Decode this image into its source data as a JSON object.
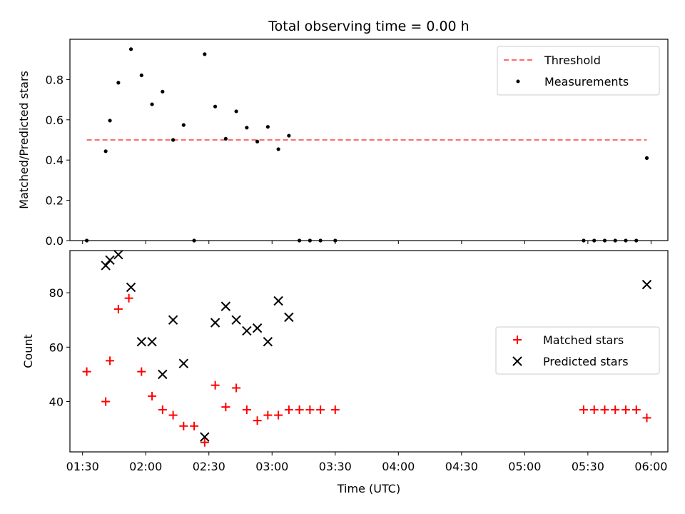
{
  "chart_data": [
    {
      "type": "scatter",
      "title": "Total observing time = 0.00 h",
      "xlabel": "",
      "ylabel": "Matched/Predicted stars",
      "xlim": [
        "01:24",
        "06:08"
      ],
      "ylim": [
        0,
        1.0
      ],
      "yticks": [
        "0.0",
        "0.2",
        "0.4",
        "0.6",
        "0.8"
      ],
      "legend_position": "top-right",
      "legend": [
        "Threshold",
        "Measurements"
      ],
      "threshold": {
        "name": "Threshold",
        "value": 0.5,
        "x_start": "01:32",
        "x_end": "05:58",
        "color": "#ff6b6b"
      },
      "series": [
        {
          "name": "Measurements",
          "color": "#000000",
          "points": [
            [
              "01:32",
              0.0
            ],
            [
              "01:41",
              0.444
            ],
            [
              "01:43",
              0.596
            ],
            [
              "01:47",
              0.784
            ],
            [
              "01:53",
              0.951
            ],
            [
              "01:58",
              0.821
            ],
            [
              "02:03",
              0.677
            ],
            [
              "02:08",
              0.74
            ],
            [
              "02:13",
              0.5
            ],
            [
              "02:18",
              0.574
            ],
            [
              "02:23",
              0.0
            ],
            [
              "02:28",
              0.926
            ],
            [
              "02:33",
              0.666
            ],
            [
              "02:38",
              0.506
            ],
            [
              "02:43",
              0.642
            ],
            [
              "02:48",
              0.561
            ],
            [
              "02:53",
              0.492
            ],
            [
              "02:58",
              0.565
            ],
            [
              "03:03",
              0.454
            ],
            [
              "03:08",
              0.521
            ],
            [
              "03:13",
              0.0
            ],
            [
              "03:18",
              0.0
            ],
            [
              "03:23",
              0.0
            ],
            [
              "03:30",
              0.0
            ],
            [
              "05:28",
              0.0
            ],
            [
              "05:33",
              0.0
            ],
            [
              "05:38",
              0.0
            ],
            [
              "05:43",
              0.0
            ],
            [
              "05:48",
              0.0
            ],
            [
              "05:53",
              0.0
            ],
            [
              "05:58",
              0.41
            ]
          ]
        }
      ]
    },
    {
      "type": "scatter",
      "title": "",
      "xlabel": "Time (UTC)",
      "ylabel": "Count",
      "xlim": [
        "01:24",
        "06:08"
      ],
      "ylim": [
        21.5,
        95.5
      ],
      "yticks": [
        "40",
        "60",
        "80"
      ],
      "xticks": [
        "01:30",
        "02:00",
        "02:30",
        "03:00",
        "03:30",
        "04:00",
        "04:30",
        "05:00",
        "05:30",
        "06:00"
      ],
      "legend_position": "center-right",
      "legend": [
        "Matched stars",
        "Predicted stars"
      ],
      "series": [
        {
          "name": "Matched stars",
          "marker": "+",
          "color": "#ff0000",
          "points": [
            [
              "01:32",
              51
            ],
            [
              "01:41",
              40
            ],
            [
              "01:43",
              55
            ],
            [
              "01:47",
              74
            ],
            [
              "01:52",
              78
            ],
            [
              "01:58",
              51
            ],
            [
              "02:03",
              42
            ],
            [
              "02:08",
              37
            ],
            [
              "02:13",
              35
            ],
            [
              "02:18",
              31
            ],
            [
              "02:23",
              31
            ],
            [
              "02:28",
              25
            ],
            [
              "02:33",
              46
            ],
            [
              "02:38",
              38
            ],
            [
              "02:43",
              45
            ],
            [
              "02:48",
              37
            ],
            [
              "02:53",
              33
            ],
            [
              "02:58",
              35
            ],
            [
              "03:03",
              35
            ],
            [
              "03:08",
              37
            ],
            [
              "03:13",
              37
            ],
            [
              "03:18",
              37
            ],
            [
              "03:23",
              37
            ],
            [
              "03:30",
              37
            ],
            [
              "05:28",
              37
            ],
            [
              "05:33",
              37
            ],
            [
              "05:38",
              37
            ],
            [
              "05:43",
              37
            ],
            [
              "05:48",
              37
            ],
            [
              "05:53",
              37
            ],
            [
              "05:58",
              34
            ]
          ]
        },
        {
          "name": "Predicted stars",
          "marker": "x",
          "color": "#000000",
          "points": [
            [
              "01:41",
              90
            ],
            [
              "01:43",
              92
            ],
            [
              "01:47",
              94
            ],
            [
              "01:53",
              82
            ],
            [
              "01:58",
              62
            ],
            [
              "02:03",
              62
            ],
            [
              "02:08",
              50
            ],
            [
              "02:13",
              70
            ],
            [
              "02:18",
              54
            ],
            [
              "02:28",
              27
            ],
            [
              "02:33",
              69
            ],
            [
              "02:38",
              75
            ],
            [
              "02:43",
              70
            ],
            [
              "02:48",
              66
            ],
            [
              "02:53",
              67
            ],
            [
              "02:58",
              62
            ],
            [
              "03:03",
              77
            ],
            [
              "03:08",
              71
            ],
            [
              "05:58",
              83
            ]
          ]
        }
      ]
    }
  ]
}
